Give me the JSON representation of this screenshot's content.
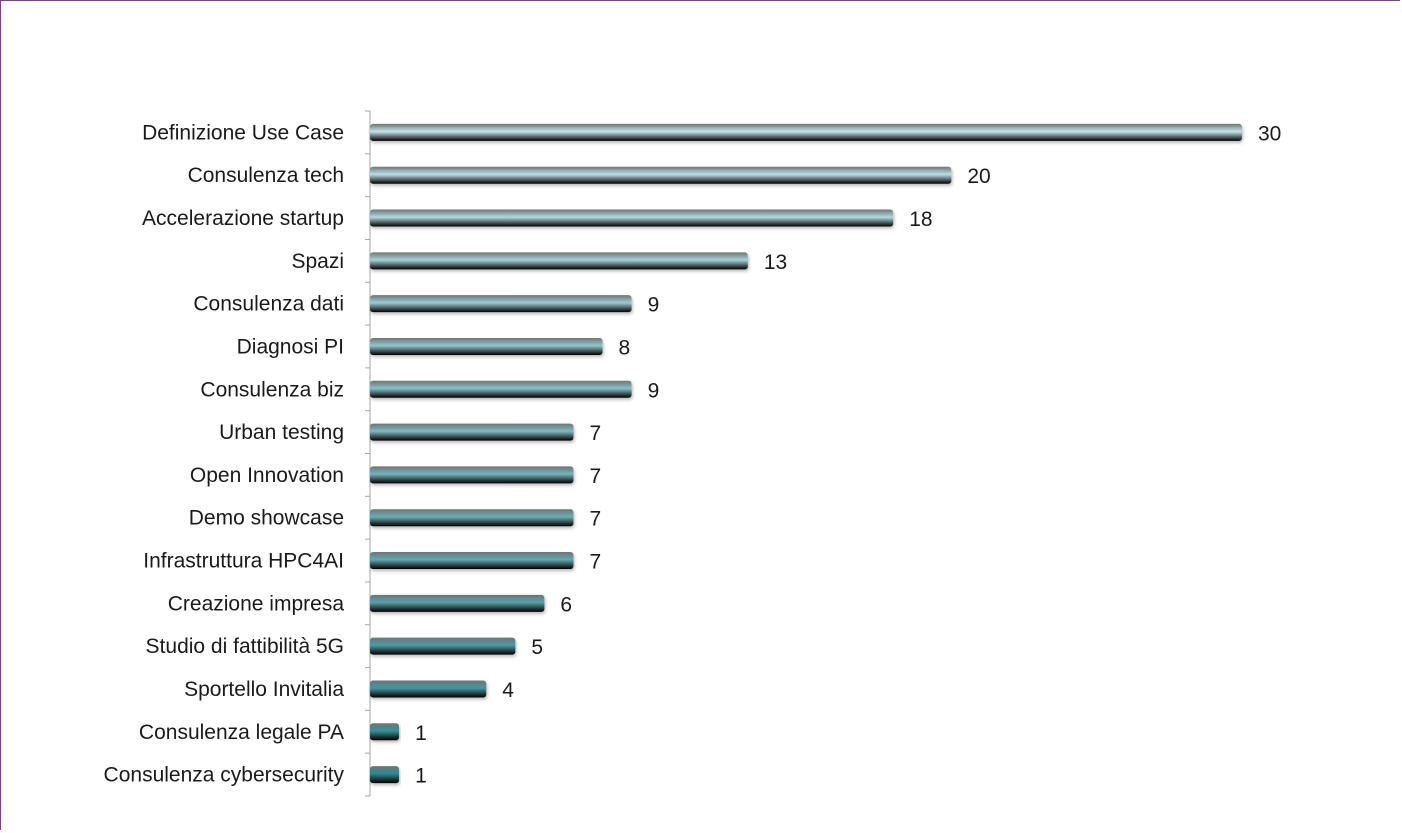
{
  "chart_data": {
    "type": "bar",
    "orientation": "horizontal",
    "categories": [
      "Definizione Use Case",
      "Consulenza tech",
      "Accelerazione startup",
      "Spazi",
      "Consulenza dati",
      "Diagnosi PI",
      "Consulenza biz",
      "Urban testing",
      "Open Innovation",
      "Demo showcase",
      "Infrastruttura HPC4AI",
      "Creazione impresa",
      "Studio di fattibilità 5G",
      "Sportello Invitalia",
      "Consulenza legale PA",
      "Consulenza cybersecurity"
    ],
    "values": [
      30,
      20,
      18,
      13,
      9,
      8,
      9,
      7,
      7,
      7,
      7,
      6,
      5,
      4,
      1,
      1
    ],
    "data_labels": [
      "30",
      "20",
      "18",
      "13",
      "9",
      "8",
      "9",
      "7",
      "7",
      "7",
      "7",
      "6",
      "5",
      "4",
      "1",
      "1"
    ],
    "title": "",
    "xlabel": "",
    "ylabel": "",
    "xlim": [
      0,
      30
    ],
    "grid": false,
    "legend": "none",
    "colors": {
      "top": "#c4e5ec",
      "bottom": "#2f8993",
      "frame": "#7a3f86",
      "axis": "#a6a6a6",
      "text": "#1a1a1a"
    }
  }
}
